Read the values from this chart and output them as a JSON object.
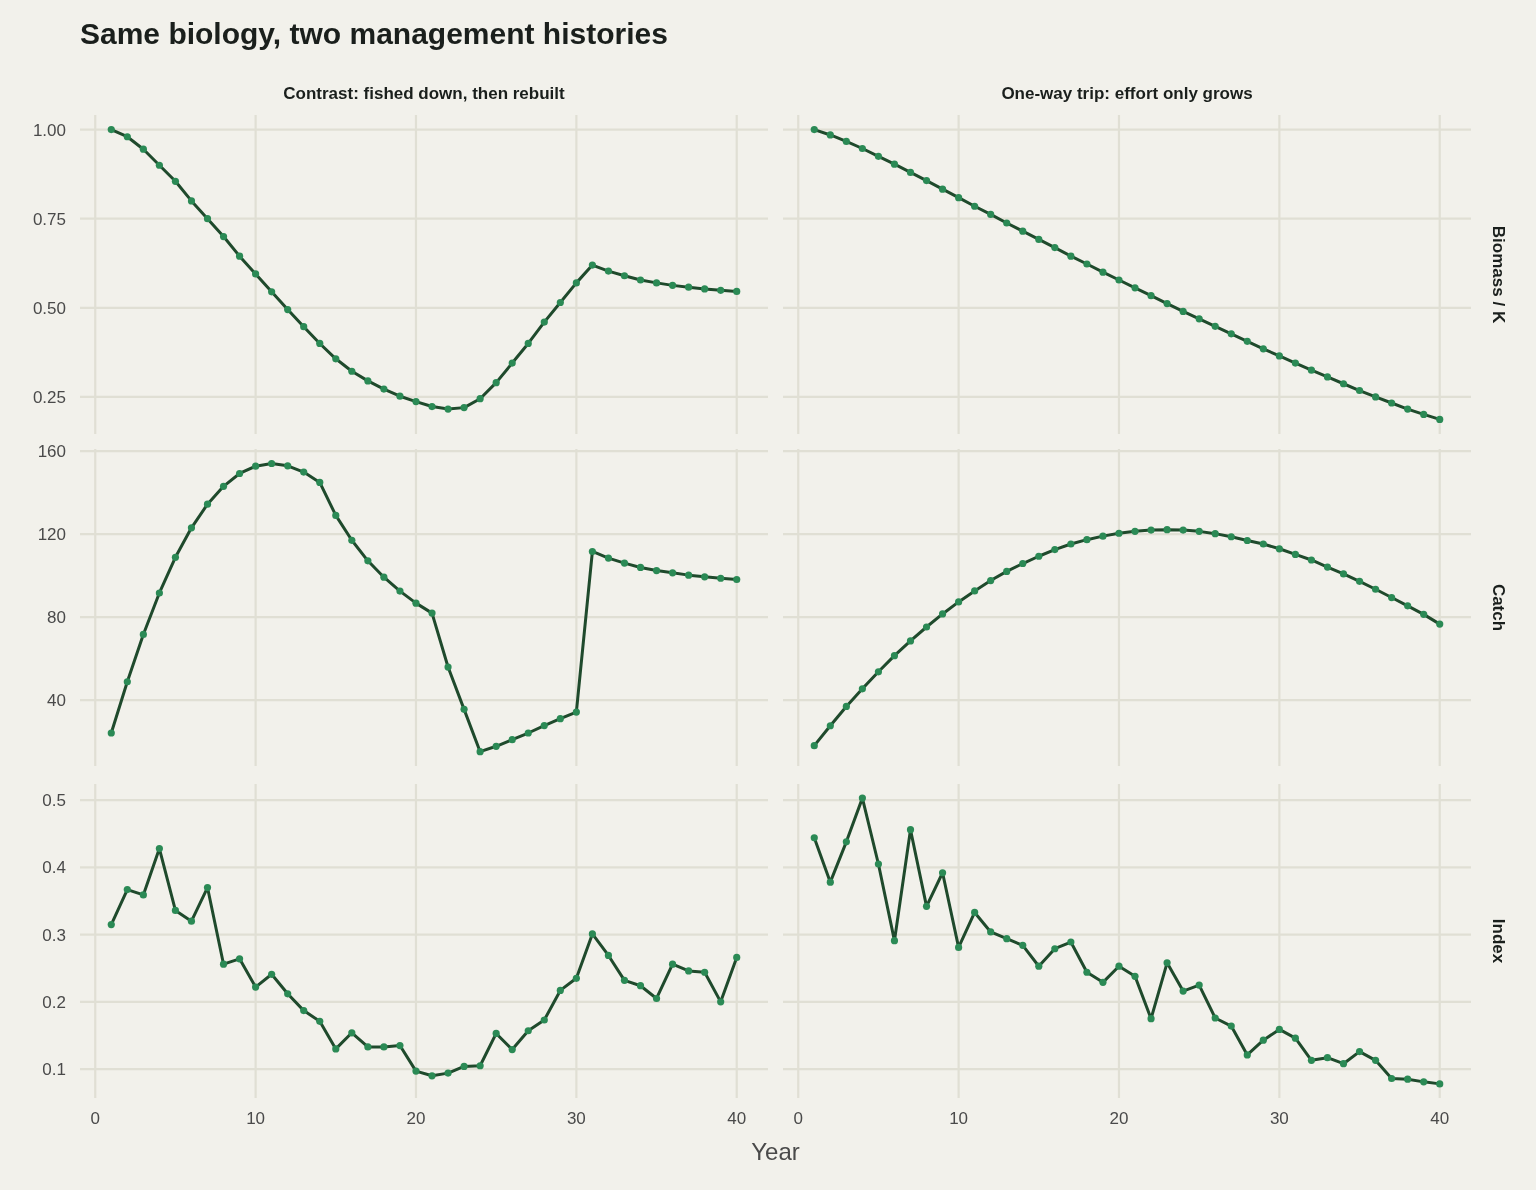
{
  "chart_data": [
    {
      "type": "line",
      "title": "Same biology, two management histories",
      "subtitle": "Contrast: fished down, then rebuilt",
      "x": [
        1,
        2,
        3,
        4,
        5,
        6,
        7,
        8,
        9,
        10,
        11,
        12,
        13,
        14,
        15,
        16,
        17,
        18,
        19,
        20,
        21,
        22,
        23,
        24,
        25,
        26,
        27,
        28,
        29,
        30,
        31,
        32,
        33,
        34,
        35,
        36,
        37,
        38,
        39,
        40
      ],
      "xlim": [
        -0.95,
        41.95
      ],
      "xticks": [
        0,
        10,
        20,
        30,
        40
      ],
      "ylim": [
        0.146,
        1.041
      ],
      "yticks": [
        {
          "value": 0.25,
          "label": "0.25"
        },
        {
          "value": 0.5,
          "label": "0.50"
        },
        {
          "value": 0.75,
          "label": "0.75"
        },
        {
          "value": 1,
          "label": "1.00"
        }
      ],
      "grid": true,
      "marker": "circle",
      "tick_labels": "y",
      "series": [
        {
          "color": "#1f4a2c",
          "values": [
            1.0,
            0.98,
            0.945,
            0.9,
            0.855,
            0.8,
            0.75,
            0.7,
            0.645,
            0.595,
            0.545,
            0.495,
            0.447,
            0.4,
            0.357,
            0.322,
            0.295,
            0.272,
            0.252,
            0.237,
            0.223,
            0.216,
            0.22,
            0.245,
            0.29,
            0.345,
            0.4,
            0.46,
            0.515,
            0.57,
            0.62,
            0.603,
            0.59,
            0.578,
            0.57,
            0.563,
            0.558,
            0.553,
            0.549,
            0.546
          ]
        }
      ]
    },
    {
      "type": "line",
      "subtitle": "One-way trip: effort only grows",
      "ylabel": "Biomass / K",
      "x": [
        1,
        2,
        3,
        4,
        5,
        6,
        7,
        8,
        9,
        10,
        11,
        12,
        13,
        14,
        15,
        16,
        17,
        18,
        19,
        20,
        21,
        22,
        23,
        24,
        25,
        26,
        27,
        28,
        29,
        30,
        31,
        32,
        33,
        34,
        35,
        36,
        37,
        38,
        39,
        40
      ],
      "xlim": [
        -0.95,
        41.95
      ],
      "xticks": [
        0,
        10,
        20,
        30,
        40
      ],
      "ylim": [
        0.146,
        1.041
      ],
      "yticks": [
        0.25,
        0.5,
        0.75,
        1
      ],
      "grid": true,
      "marker": "circle",
      "tick_labels": false,
      "series": [
        {
          "color": "#1f4a2c",
          "values": [
            1.0,
            0.985,
            0.967,
            0.947,
            0.925,
            0.903,
            0.88,
            0.857,
            0.833,
            0.809,
            0.785,
            0.762,
            0.738,
            0.715,
            0.692,
            0.669,
            0.645,
            0.623,
            0.6,
            0.578,
            0.556,
            0.534,
            0.512,
            0.49,
            0.469,
            0.448,
            0.427,
            0.406,
            0.385,
            0.365,
            0.345,
            0.325,
            0.306,
            0.287,
            0.268,
            0.25,
            0.233,
            0.216,
            0.201,
            0.187
          ]
        }
      ]
    },
    {
      "type": "line",
      "x": [
        1,
        2,
        3,
        4,
        5,
        6,
        7,
        8,
        9,
        10,
        11,
        12,
        13,
        14,
        15,
        16,
        17,
        18,
        19,
        20,
        21,
        22,
        23,
        24,
        25,
        26,
        27,
        28,
        29,
        30,
        31,
        32,
        33,
        34,
        35,
        36,
        37,
        38,
        39,
        40
      ],
      "xlim": [
        -0.95,
        41.95
      ],
      "xticks": [
        0,
        10,
        20,
        30,
        40
      ],
      "ylim": [
        8.2,
        161
      ],
      "yticks": [
        40,
        80,
        120,
        160
      ],
      "grid": true,
      "marker": "circle",
      "tick_labels": "y",
      "series": [
        {
          "color": "#1f4a2c",
          "values": [
            24.1,
            48.8,
            71.6,
            91.6,
            108.8,
            123,
            134.4,
            143,
            149.2,
            152.7,
            154,
            152.9,
            149.9,
            144.9,
            129,
            117,
            107.1,
            99.2,
            92.5,
            86.7,
            81.9,
            55.9,
            35.5,
            15.1,
            17.7,
            20.9,
            24.1,
            27.7,
            31,
            34.2,
            111.6,
            108.4,
            106,
            103.9,
            102.4,
            101.3,
            100.2,
            99.4,
            98.7,
            98.1
          ]
        }
      ]
    },
    {
      "type": "line",
      "ylabel": "Catch",
      "x": [
        1,
        2,
        3,
        4,
        5,
        6,
        7,
        8,
        9,
        10,
        11,
        12,
        13,
        14,
        15,
        16,
        17,
        18,
        19,
        20,
        21,
        22,
        23,
        24,
        25,
        26,
        27,
        28,
        29,
        30,
        31,
        32,
        33,
        34,
        35,
        36,
        37,
        38,
        39,
        40
      ],
      "xlim": [
        -0.95,
        41.95
      ],
      "xticks": [
        0,
        10,
        20,
        30,
        40
      ],
      "ylim": [
        8.2,
        161
      ],
      "yticks": [
        40,
        80,
        120,
        160
      ],
      "grid": true,
      "marker": "circle",
      "tick_labels": false,
      "series": [
        {
          "color": "#1f4a2c",
          "values": [
            18,
            27.6,
            36.9,
            45.4,
            53.6,
            61.4,
            68.5,
            75.2,
            81.5,
            87.3,
            92.6,
            97.6,
            102,
            105.8,
            109.3,
            112.5,
            115.2,
            117.3,
            119,
            120.4,
            121.3,
            121.9,
            122.1,
            121.9,
            121.3,
            120.2,
            118.7,
            116.9,
            115.2,
            112.9,
            110.2,
            107.5,
            104.1,
            100.8,
            97.2,
            93.4,
            89.4,
            85.4,
            81.3,
            76.6
          ]
        }
      ]
    },
    {
      "type": "line",
      "xlabel": "Year",
      "x": [
        1,
        2,
        3,
        4,
        5,
        6,
        7,
        8,
        9,
        10,
        11,
        12,
        13,
        14,
        15,
        16,
        17,
        18,
        19,
        20,
        21,
        22,
        23,
        24,
        25,
        26,
        27,
        28,
        29,
        30,
        31,
        32,
        33,
        34,
        35,
        36,
        37,
        38,
        39,
        40
      ],
      "xlim": [
        -0.95,
        41.95
      ],
      "xticks": [
        0,
        10,
        20,
        30,
        40
      ],
      "ylim": [
        0.057,
        0.524
      ],
      "yticks": [
        0.1,
        0.2,
        0.3,
        0.4,
        0.5
      ],
      "grid": true,
      "marker": "circle",
      "series": [
        {
          "color": "#1f4a2c",
          "values": [
            0.315,
            0.367,
            0.359,
            0.428,
            0.336,
            0.32,
            0.37,
            0.256,
            0.264,
            0.222,
            0.241,
            0.212,
            0.187,
            0.171,
            0.13,
            0.154,
            0.133,
            0.133,
            0.135,
            0.097,
            0.09,
            0.094,
            0.104,
            0.105,
            0.153,
            0.129,
            0.157,
            0.173,
            0.217,
            0.235,
            0.301,
            0.269,
            0.232,
            0.224,
            0.205,
            0.256,
            0.246,
            0.244,
            0.2,
            0.266
          ]
        }
      ]
    },
    {
      "type": "line",
      "ylabel": "Index",
      "x": [
        1,
        2,
        3,
        4,
        5,
        6,
        7,
        8,
        9,
        10,
        11,
        12,
        13,
        14,
        15,
        16,
        17,
        18,
        19,
        20,
        21,
        22,
        23,
        24,
        25,
        26,
        27,
        28,
        29,
        30,
        31,
        32,
        33,
        34,
        35,
        36,
        37,
        38,
        39,
        40
      ],
      "xlim": [
        -0.95,
        41.95
      ],
      "xticks": [
        0,
        10,
        20,
        30,
        40
      ],
      "ylim": [
        0.057,
        0.524
      ],
      "yticks": [
        0.1,
        0.2,
        0.3,
        0.4,
        0.5
      ],
      "grid": true,
      "marker": "circle",
      "tick_labels": "x",
      "series": [
        {
          "color": "#1f4a2c",
          "values": [
            0.444,
            0.378,
            0.438,
            0.503,
            0.405,
            0.291,
            0.456,
            0.342,
            0.392,
            0.281,
            0.333,
            0.304,
            0.294,
            0.284,
            0.253,
            0.279,
            0.289,
            0.244,
            0.229,
            0.253,
            0.238,
            0.175,
            0.258,
            0.216,
            0.225,
            0.176,
            0.164,
            0.121,
            0.143,
            0.159,
            0.146,
            0.113,
            0.117,
            0.108,
            0.126,
            0.113,
            0.086,
            0.085,
            0.081,
            0.078
          ]
        }
      ]
    }
  ]
}
